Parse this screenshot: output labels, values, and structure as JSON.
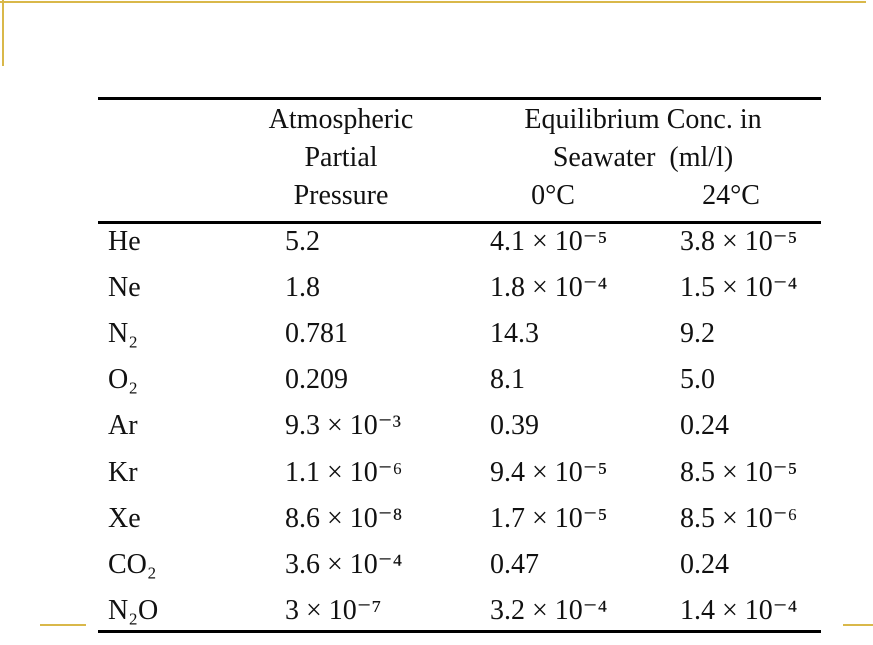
{
  "header": {
    "pressure": [
      "Atmospheric",
      "Partial",
      "Pressure"
    ],
    "conc": [
      "Equilibrium Conc. in",
      "Seawater  (ml/l)"
    ],
    "temps": [
      "0°C",
      "24°C"
    ]
  },
  "table": {
    "rows": [
      [
        "He",
        "5.2",
        "4.1 × 10⁻⁵",
        "3.8 × 10⁻⁵"
      ],
      [
        "Ne",
        "1.8",
        "1.8 × 10⁻⁴",
        "1.5 × 10⁻⁴"
      ],
      [
        "N₂",
        "0.781",
        "14.3",
        "9.2"
      ],
      [
        "O₂",
        "0.209",
        "8.1",
        "5.0"
      ],
      [
        "Ar",
        "9.3 × 10⁻³",
        "0.39",
        "0.24"
      ],
      [
        "Kr",
        "1.1 × 10⁻⁶",
        "9.4 × 10⁻⁵",
        "8.5 × 10⁻⁵"
      ],
      [
        "Xe",
        "8.6 × 10⁻⁸",
        "1.7 × 10⁻⁵",
        "8.5 × 10⁻⁶"
      ],
      [
        "CO₂",
        "3.6 × 10⁻⁴",
        "0.47",
        "0.24"
      ],
      [
        "N₂O",
        "3 × 10⁻⁷",
        "3.2 × 10⁻⁴",
        "1.4 × 10⁻⁴"
      ]
    ]
  }
}
